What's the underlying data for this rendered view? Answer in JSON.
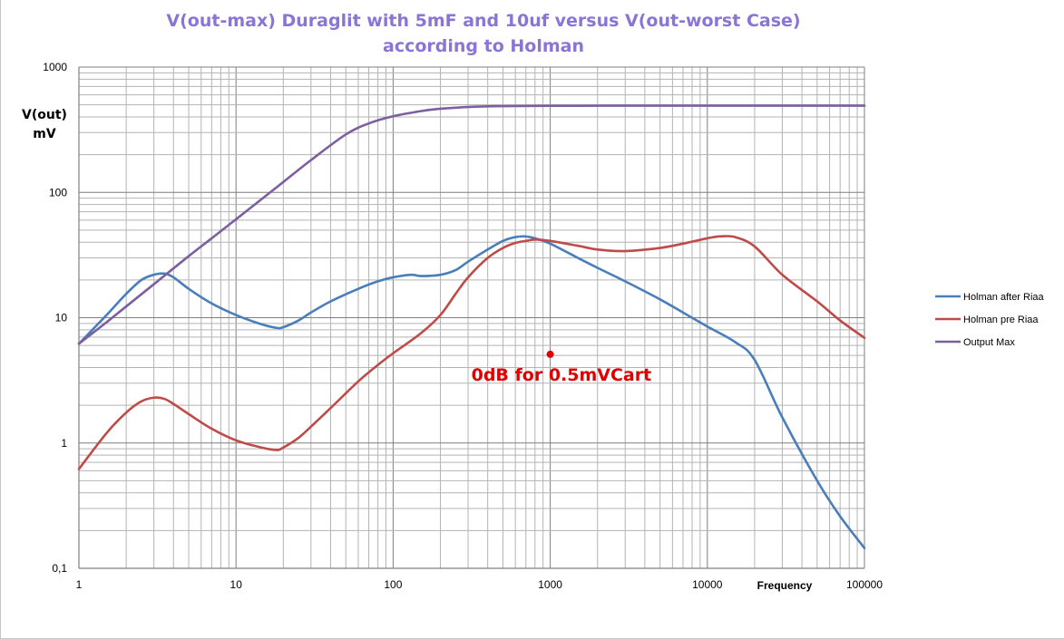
{
  "chart_data": {
    "type": "line",
    "title_lines": [
      "V(out-max) Duraglit with 5mF and 10uf versus V(out-worst Case)",
      "according to Holman"
    ],
    "ylabel_lines": [
      "V(out)",
      "mV"
    ],
    "xlabel": "Frequency",
    "x_scale": "log",
    "y_scale": "log",
    "xlim": [
      1,
      100000
    ],
    "ylim": [
      0.1,
      1000
    ],
    "x_ticks": [
      1,
      10,
      100,
      1000,
      10000,
      100000
    ],
    "x_tick_labels": [
      "1",
      "10",
      "100",
      "1000",
      "10000",
      "100000"
    ],
    "y_ticks": [
      0.1,
      1,
      10,
      100,
      1000
    ],
    "y_tick_labels": [
      "0,1",
      "1",
      "10",
      "100",
      "1000"
    ],
    "grid": true,
    "legend_position": "right",
    "series": [
      {
        "name": "Holman after Riaa",
        "color": "#4a7ebb",
        "x": [
          1,
          1.5,
          2,
          2.5,
          3,
          3.5,
          4,
          5,
          7,
          10,
          14,
          18,
          20,
          25,
          30,
          40,
          60,
          80,
          100,
          130,
          150,
          200,
          250,
          300,
          400,
          500,
          600,
          700,
          800,
          1000,
          1500,
          2000,
          3000,
          5000,
          7000,
          10000,
          15000,
          20000,
          30000,
          50000,
          70000,
          100000
        ],
        "y": [
          6.2,
          10.5,
          15.5,
          20,
          22,
          22.5,
          21,
          17,
          13,
          10.5,
          9,
          8.3,
          8.4,
          9.5,
          11,
          13.5,
          17,
          19.5,
          21,
          22,
          21.5,
          22,
          24,
          28,
          35,
          41,
          44,
          44.5,
          43,
          39,
          30,
          25,
          19.5,
          14,
          11,
          8.5,
          6.4,
          4.6,
          1.6,
          0.5,
          0.26,
          0.145
        ]
      },
      {
        "name": "Holman pre Riaa",
        "color": "#be4b48",
        "x": [
          1,
          1.5,
          2,
          2.5,
          3,
          3.5,
          4,
          5,
          7,
          10,
          14,
          18,
          20,
          25,
          30,
          40,
          60,
          80,
          100,
          150,
          200,
          250,
          300,
          400,
          500,
          600,
          700,
          800,
          1000,
          1500,
          2000,
          3000,
          5000,
          7000,
          10000,
          12000,
          15000,
          20000,
          30000,
          50000,
          70000,
          100000
        ],
        "y": [
          0.62,
          1.2,
          1.75,
          2.15,
          2.3,
          2.25,
          2.05,
          1.7,
          1.3,
          1.05,
          0.93,
          0.88,
          0.92,
          1.1,
          1.35,
          1.9,
          3.1,
          4.2,
          5.2,
          7.5,
          10.5,
          15.5,
          21,
          30,
          36,
          39.5,
          41,
          42,
          41,
          37.5,
          35,
          34,
          36,
          39,
          43,
          44.5,
          44,
          37,
          22,
          13.5,
          9.5,
          6.9
        ]
      },
      {
        "name": "Output Max",
        "color": "#7d5fa0",
        "x": [
          1,
          1.5,
          2,
          3,
          5,
          7,
          10,
          15,
          20,
          30,
          50,
          70,
          100,
          150,
          200,
          300,
          500,
          1000,
          3000,
          10000,
          100000
        ],
        "y": [
          6.2,
          9.2,
          12.3,
          18.5,
          31,
          43,
          61,
          91,
          121,
          181,
          290,
          355,
          405,
          445,
          465,
          480,
          488,
          491,
          492,
          492,
          492
        ]
      }
    ],
    "annotations": [
      {
        "text": "0dB for 0.5mVCart",
        "x": 1000,
        "y": 5.1,
        "color": "#e00000"
      }
    ]
  }
}
